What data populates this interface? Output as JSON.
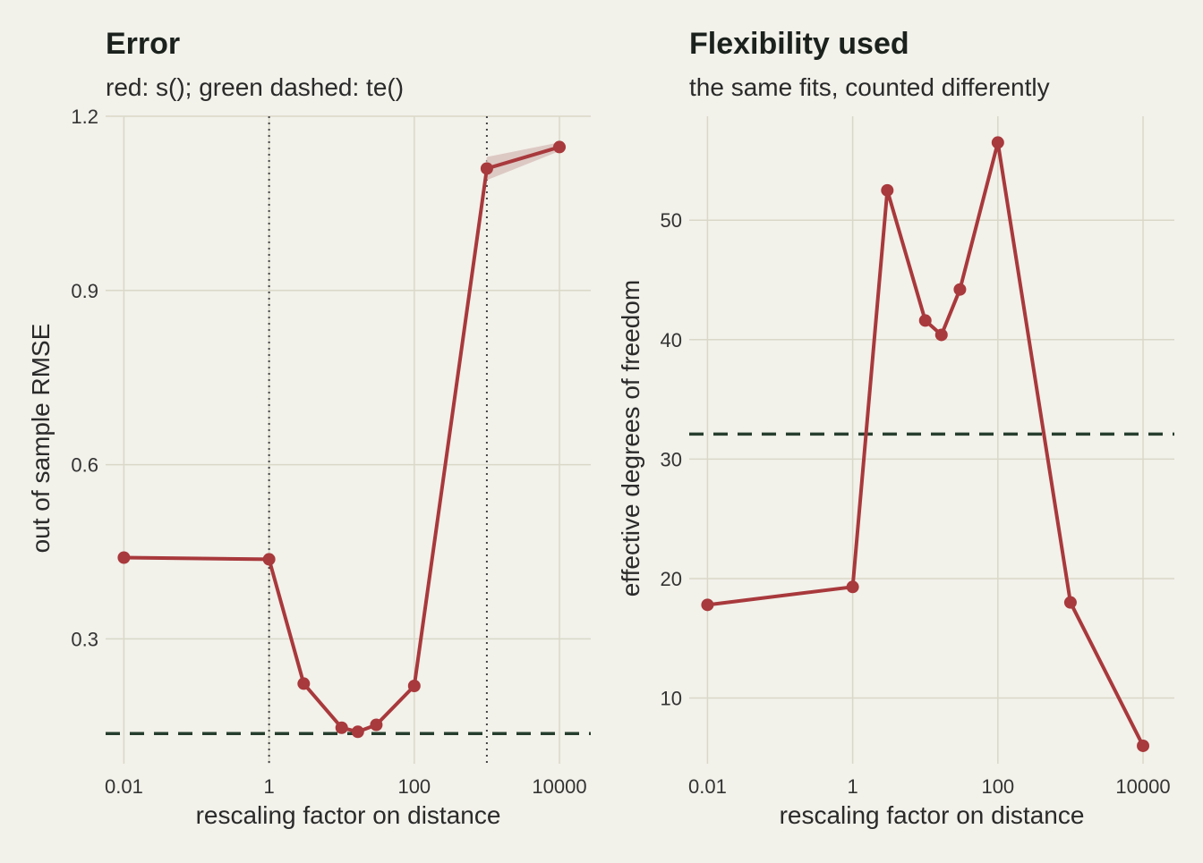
{
  "colors": {
    "background": "#f2f1ea",
    "grid": "#d9d8c8",
    "series_red": "#a8393c",
    "ribbon": "#d9c2bd",
    "reference_green": "#263e2e",
    "vline": "#444444"
  },
  "chart_data": [
    {
      "type": "line",
      "title": "Error",
      "subtitle": "red: s(); green dashed: te()",
      "xlabel": "rescaling factor on distance",
      "ylabel": "out of sample RMSE",
      "xscale": "log10",
      "xlim": [
        0.0056,
        27000
      ],
      "ylim": [
        0.085,
        1.2
      ],
      "xticks": [
        0.01,
        1,
        100,
        10000
      ],
      "xtick_labels": [
        "0.01",
        "1",
        "100",
        "10000"
      ],
      "yticks": [
        0.3,
        0.6,
        0.9,
        1.2
      ],
      "ytick_labels": [
        "0.3",
        "0.6",
        "0.9",
        "1.2"
      ],
      "grid": true,
      "series": [
        {
          "kind": "s()",
          "x": [
            0.01,
            1,
            3,
            10,
            16.7,
            30,
            100,
            1000,
            10000
          ],
          "y": [
            0.44,
            0.437,
            0.223,
            0.147,
            0.14,
            0.152,
            0.219,
            1.11,
            1.147
          ],
          "band_low": [
            0.44,
            0.437,
            0.223,
            0.147,
            0.14,
            0.152,
            0.219,
            1.09,
            1.14
          ],
          "band_high": [
            0.44,
            0.437,
            0.223,
            0.147,
            0.14,
            0.152,
            0.219,
            1.13,
            1.155
          ]
        }
      ],
      "reference_lines": [
        {
          "kind": "te()",
          "orientation": "horizontal",
          "y": 0.137,
          "style": "dashed"
        },
        {
          "orientation": "vertical",
          "x": 1,
          "style": "dotted"
        },
        {
          "orientation": "vertical",
          "x": 1000,
          "style": "dotted"
        }
      ]
    },
    {
      "type": "line",
      "title": "Flexibility used",
      "subtitle": "the same fits, counted differently",
      "xlabel": "rescaling factor on distance",
      "ylabel": "effective degrees of freedom",
      "xscale": "log10",
      "xlim": [
        0.0056,
        27000
      ],
      "ylim": [
        4.5,
        58.7
      ],
      "xticks": [
        0.01,
        1,
        100,
        10000
      ],
      "xtick_labels": [
        "0.01",
        "1",
        "100",
        "10000"
      ],
      "yticks": [
        10,
        20,
        30,
        40,
        50
      ],
      "ytick_labels": [
        "10",
        "20",
        "30",
        "40",
        "50"
      ],
      "grid": true,
      "series": [
        {
          "kind": "s()",
          "x": [
            0.01,
            1,
            3,
            10,
            16.7,
            30,
            100,
            1000,
            10000
          ],
          "y": [
            17.8,
            19.3,
            52.5,
            41.6,
            40.4,
            44.2,
            56.5,
            18.0,
            6.0
          ]
        }
      ],
      "reference_lines": [
        {
          "kind": "te()",
          "orientation": "horizontal",
          "y": 32.1,
          "style": "dashed"
        }
      ]
    }
  ]
}
